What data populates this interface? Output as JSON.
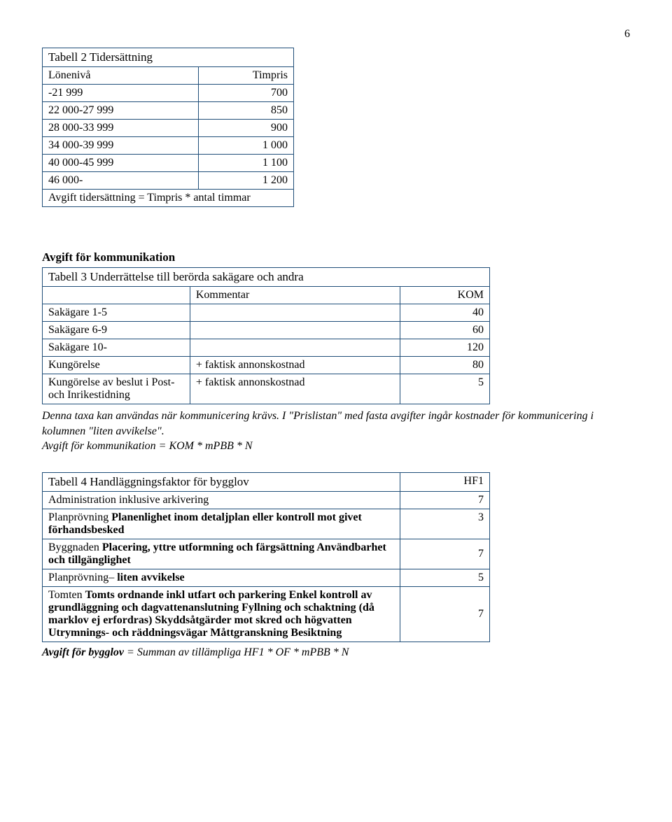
{
  "page_number": "6",
  "table2": {
    "title": "Tabell 2 Tidersättning",
    "header": [
      "Lönenivå",
      "Timpris"
    ],
    "rows": [
      [
        "-21 999",
        "700"
      ],
      [
        "22 000-27 999",
        "850"
      ],
      [
        "28 000-33 999",
        "900"
      ],
      [
        "34 000-39 999",
        "1 000"
      ],
      [
        "40 000-45 999",
        "1 100"
      ],
      [
        "46 000-",
        "1 200"
      ]
    ],
    "footer": "Avgift tidersättning = Timpris * antal timmar"
  },
  "table3": {
    "section_label": "Avgift för kommunikation",
    "title": "Tabell 3 Underrättelse till berörda sakägare och andra",
    "header": [
      "",
      "Kommentar",
      "KOM"
    ],
    "rows": [
      [
        "Sakägare 1-5",
        "",
        "40"
      ],
      [
        "Sakägare 6-9",
        "",
        "60"
      ],
      [
        "Sakägare 10-",
        "",
        "120"
      ],
      [
        "Kungörelse",
        "+ faktisk annonskostnad",
        "80"
      ],
      [
        "Kungörelse av beslut i Post- och Inrikestidning",
        "+ faktisk annonskostnad",
        "5"
      ]
    ],
    "note": "Denna taxa kan användas när kommunicering krävs. I \"Prislistan\" med fasta avgifter ingår kostnader för kommunicering i kolumnen \"liten avvikelse\".",
    "formula": "Avgift för kommunikation = KOM * mPBB * N"
  },
  "table4": {
    "title": "Tabell 4 Handläggningsfaktor för bygglov",
    "header_right": "HF1",
    "rows": [
      {
        "text": "Administration inklusive arkivering",
        "val": "7"
      },
      {
        "html": "Planprövning <b>Planenlighet inom detaljplan eller kontroll mot givet förhandsbesked</b>",
        "val": "3"
      },
      {
        "html": "Byggnaden <b>Placering, yttre utformning och färgsättning Användbarhet och tillgänglighet</b>",
        "val": "7"
      },
      {
        "html": "Planprövning– <b>liten avvikelse</b>",
        "val": "5"
      },
      {
        "html": "Tomten <b>Tomts ordnande inkl utfart och parkering Enkel kontroll av grundläggning och dagvattenanslutning Fyllning och schaktning (då marklov ej erfordras) Skyddsåtgärder mot skred och högvatten Utrymnings- och räddningsvägar Måttgranskning Besiktning</b>",
        "val": "7"
      }
    ],
    "formula_prefix": "Avgift för bygglov",
    "formula_rest": " = Summan av tillämpliga HF1 * OF * mPBB * N"
  },
  "colors": {
    "border": "#1f4e79",
    "text": "#000000",
    "bg": "#ffffff"
  },
  "fonts": {
    "family": "Times New Roman",
    "body_size_pt": 12,
    "title_size_pt": 13
  }
}
